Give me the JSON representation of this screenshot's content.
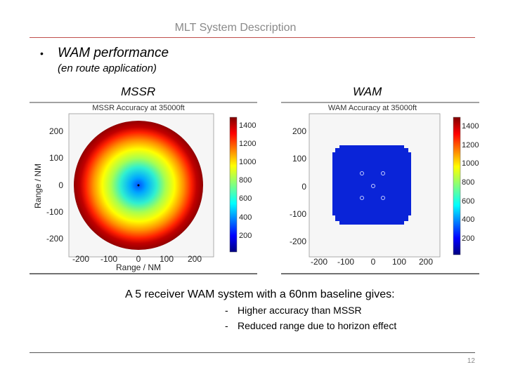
{
  "slide": {
    "title": "MLT System Description",
    "bullet_symbol": "•",
    "bullet": "WAM performance",
    "bullet_sub": "(en route application)",
    "page_number": "12"
  },
  "plots": {
    "mssr": {
      "label": "MSSR",
      "heading": "MSSR Accuracy at 35000ft",
      "xlabel": "Range / NM",
      "ylabel": "Range / NM",
      "x_ticks": [
        "-200",
        "-100",
        "0",
        "100",
        "200"
      ],
      "y_ticks": [
        "200",
        "100",
        "0",
        "-100",
        "-200"
      ],
      "colorbar_ticks": [
        "1400",
        "1200",
        "1000",
        "800",
        "600",
        "400",
        "200"
      ]
    },
    "wam": {
      "label": "WAM",
      "heading": "WAM Accuracy at 35000ft",
      "x_ticks": [
        "-200",
        "-100",
        "0",
        "100",
        "200"
      ],
      "y_ticks": [
        "200",
        "100",
        "0",
        "-100",
        "-200"
      ],
      "colorbar_ticks": [
        "1400",
        "1200",
        "1000",
        "800",
        "600",
        "400",
        "200"
      ]
    }
  },
  "summary": {
    "headline": "A 5 receiver WAM system with a 60nm baseline gives:",
    "points": [
      {
        "dash": "-",
        "text": "Higher accuracy than MSSR"
      },
      {
        "dash": "-",
        "text": "Reduced range due to horizon effect"
      }
    ]
  },
  "colors": {
    "title_rule": "#c0504d",
    "jet_low": "#00007f",
    "jet_high": "#7f0000"
  }
}
